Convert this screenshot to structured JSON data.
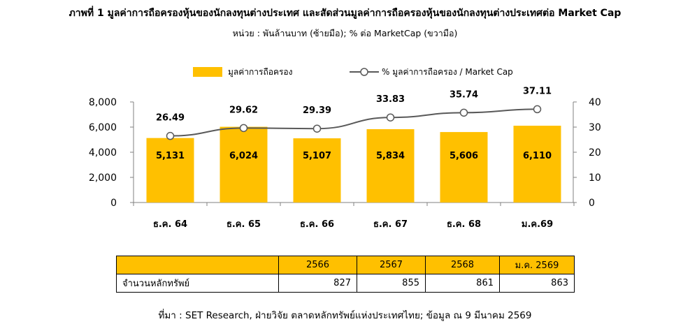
{
  "title": "ภาพที่ 1 มูลค่าการถือครองหุ้นของนักลงทุนต่างประเทศ และสัดส่วนมูลค่าการถือครองหุ้นของนักลงทุนต่างประเทศต่อ Market Cap",
  "subtitle": "หน่วย : พันล้านบาท (ซ้ายมือ); % ต่อ MarketCap (ขวามือ)",
  "colors": {
    "bar": "#FFC000",
    "line": "#595959",
    "marker_fill": "#FFFFFF",
    "axis": "#808080"
  },
  "chart_data": {
    "type": "bar",
    "categories": [
      "ธ.ค. 64",
      "ธ.ค. 65",
      "ธ.ค. 66",
      "ธ.ค. 67",
      "ธ.ค. 68",
      "ม.ค.69"
    ],
    "series": [
      {
        "name": "มูลค่าการถือครอง",
        "type": "bar",
        "axis": "left",
        "values": [
          5131,
          6024,
          5107,
          5834,
          5606,
          6110
        ],
        "labels": [
          "5,131",
          "6,024",
          "5,107",
          "5,834",
          "5,606",
          "6,110"
        ]
      },
      {
        "name": "% มูลค่าการถือครอง / Market Cap",
        "type": "line",
        "axis": "right",
        "values": [
          26.49,
          29.62,
          29.39,
          33.83,
          35.74,
          37.11
        ],
        "labels": [
          "26.49",
          "29.62",
          "29.39",
          "33.83",
          "35.74",
          "37.11"
        ]
      }
    ],
    "y_left": {
      "ylim": [
        0,
        8000
      ],
      "ticks": [
        0,
        2000,
        4000,
        6000,
        8000
      ],
      "tick_labels": [
        "0",
        "2,000",
        "4,000",
        "6,000",
        "8,000"
      ]
    },
    "y_right": {
      "ylim": [
        0,
        40
      ],
      "ticks": [
        0,
        10,
        20,
        30,
        40
      ],
      "tick_labels": [
        "0",
        "10",
        "20",
        "30",
        "40"
      ]
    },
    "grid": false,
    "legend_position": "top"
  },
  "table": {
    "header": [
      "",
      "2566",
      "2567",
      "2568",
      "ม.ค. 2569"
    ],
    "rows": [
      [
        "จำนวนหลักทรัพย์",
        "827",
        "855",
        "861",
        "863"
      ]
    ]
  },
  "source": "ที่มา : SET Research, ฝ่ายวิจัย ตลาดหลักทรัพย์แห่งประเทศไทย; ข้อมูล ณ 9 มีนาคม 2569"
}
